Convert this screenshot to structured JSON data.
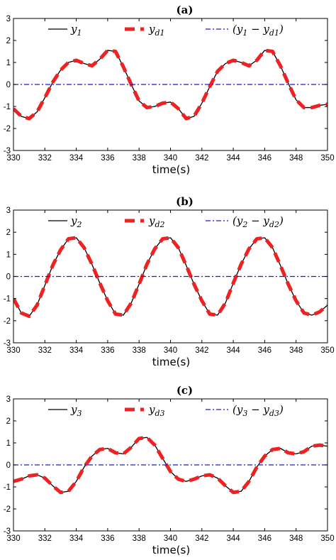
{
  "chart_data": [
    {
      "type": "line",
      "title": "(a)",
      "xlabel": "time(s)",
      "ylabel": "",
      "xlim": [
        330,
        350
      ],
      "ylim": [
        -3,
        3
      ],
      "xticks": [
        "330",
        "332",
        "334",
        "336",
        "338",
        "340",
        "342",
        "344",
        "346",
        "348",
        "350"
      ],
      "yticks": [
        "-3",
        "-2",
        "-1",
        "0",
        "1",
        "2",
        "3"
      ],
      "legend": [
        "y1",
        "yd1",
        "(y1 − yd1)"
      ],
      "legend_position": "top",
      "series": [
        {
          "name": "y1",
          "color": "#000000",
          "style": "solid",
          "x": [
            330,
            330.5,
            331,
            331.5,
            332,
            332.5,
            333,
            333.5,
            334,
            334.5,
            335,
            335.5,
            336,
            336.5,
            337,
            337.5,
            338,
            338.5,
            339,
            339.5,
            340,
            340.5,
            341,
            341.5,
            342,
            342.5,
            343,
            343.5,
            344,
            344.5,
            345,
            345.5,
            346,
            346.5,
            347,
            347.5,
            348,
            348.5,
            349,
            349.5,
            350
          ],
          "y": [
            -1.1,
            -1.45,
            -1.55,
            -1.25,
            -0.6,
            0.1,
            0.65,
            1.0,
            1.1,
            0.95,
            0.85,
            1.15,
            1.55,
            1.5,
            0.8,
            0.0,
            -0.75,
            -1.05,
            -1.0,
            -0.85,
            -0.8,
            -1.1,
            -1.55,
            -1.45,
            -0.85,
            -0.1,
            0.6,
            0.95,
            1.1,
            1.0,
            0.85,
            1.1,
            1.55,
            1.5,
            0.85,
            0.05,
            -0.7,
            -1.05,
            -1.05,
            -0.95,
            -0.9
          ]
        },
        {
          "name": "yd1",
          "color": "#ee2222",
          "style": "dashed",
          "x": [
            330,
            330.5,
            331,
            331.5,
            332,
            332.5,
            333,
            333.5,
            334,
            334.5,
            335,
            335.5,
            336,
            336.5,
            337,
            337.5,
            338,
            338.5,
            339,
            339.5,
            340,
            340.5,
            341,
            341.5,
            342,
            342.5,
            343,
            343.5,
            344,
            344.5,
            345,
            345.5,
            346,
            346.5,
            347,
            347.5,
            348,
            348.5,
            349,
            349.5,
            350
          ],
          "y": [
            -1.1,
            -1.45,
            -1.55,
            -1.25,
            -0.6,
            0.1,
            0.65,
            1.0,
            1.1,
            0.95,
            0.85,
            1.15,
            1.55,
            1.5,
            0.8,
            0.0,
            -0.75,
            -1.05,
            -1.0,
            -0.85,
            -0.8,
            -1.1,
            -1.55,
            -1.45,
            -0.85,
            -0.1,
            0.6,
            0.95,
            1.1,
            1.0,
            0.85,
            1.1,
            1.55,
            1.5,
            0.85,
            0.05,
            -0.7,
            -1.05,
            -1.05,
            -0.95,
            -0.9
          ]
        },
        {
          "name": "(y1 − yd1)",
          "color": "#1a1acc",
          "style": "dashdot",
          "x": [
            330,
            350
          ],
          "y": [
            0,
            0
          ]
        }
      ]
    },
    {
      "type": "line",
      "title": "(b)",
      "xlabel": "time(s)",
      "ylabel": "",
      "xlim": [
        330,
        350
      ],
      "ylim": [
        -3,
        3
      ],
      "xticks": [
        "330",
        "332",
        "334",
        "336",
        "338",
        "340",
        "342",
        "344",
        "346",
        "348",
        "350"
      ],
      "yticks": [
        "-3",
        "-2",
        "-1",
        "0",
        "1",
        "2",
        "3"
      ],
      "legend": [
        "y2",
        "yd2",
        "(y2 − yd2)"
      ],
      "legend_position": "top",
      "series": [
        {
          "name": "y2",
          "color": "#000000",
          "style": "solid",
          "x": [
            330,
            330.5,
            331,
            331.5,
            332,
            332.5,
            333,
            333.5,
            334,
            334.5,
            335,
            335.5,
            336,
            336.5,
            337,
            337.5,
            338,
            338.5,
            339,
            339.5,
            340,
            340.5,
            341,
            341.5,
            342,
            342.5,
            343,
            343.5,
            344,
            344.5,
            345,
            345.5,
            346,
            346.5,
            347,
            347.5,
            348,
            348.5,
            349,
            349.5,
            350
          ],
          "y": [
            -1.0,
            -1.65,
            -1.8,
            -1.3,
            -0.4,
            0.5,
            1.2,
            1.7,
            1.75,
            1.3,
            0.55,
            -0.3,
            -1.1,
            -1.7,
            -1.75,
            -1.2,
            -0.35,
            0.55,
            1.25,
            1.7,
            1.75,
            1.3,
            0.5,
            -0.35,
            -1.1,
            -1.7,
            -1.75,
            -1.2,
            -0.3,
            0.55,
            1.25,
            1.7,
            1.75,
            1.3,
            0.5,
            -0.35,
            -1.1,
            -1.65,
            -1.75,
            -1.6,
            -1.3
          ]
        },
        {
          "name": "yd2",
          "color": "#ee2222",
          "style": "dashed",
          "x": [
            330,
            330.5,
            331,
            331.5,
            332,
            332.5,
            333,
            333.5,
            334,
            334.5,
            335,
            335.5,
            336,
            336.5,
            337,
            337.5,
            338,
            338.5,
            339,
            339.5,
            340,
            340.5,
            341,
            341.5,
            342,
            342.5,
            343,
            343.5,
            344,
            344.5,
            345,
            345.5,
            346,
            346.5,
            347,
            347.5,
            348,
            348.5,
            349,
            349.5,
            350
          ],
          "y": [
            -1.0,
            -1.65,
            -1.8,
            -1.3,
            -0.4,
            0.5,
            1.2,
            1.7,
            1.75,
            1.3,
            0.55,
            -0.3,
            -1.1,
            -1.7,
            -1.75,
            -1.2,
            -0.35,
            0.55,
            1.25,
            1.7,
            1.75,
            1.3,
            0.5,
            -0.35,
            -1.1,
            -1.7,
            -1.75,
            -1.2,
            -0.3,
            0.55,
            1.25,
            1.7,
            1.75,
            1.3,
            0.5,
            -0.35,
            -1.1,
            -1.65,
            -1.75,
            -1.6,
            -1.3
          ]
        },
        {
          "name": "(y2 − yd2)",
          "color": "#1a1acc",
          "style": "dashdot",
          "x": [
            330,
            350
          ],
          "y": [
            0,
            0
          ]
        }
      ]
    },
    {
      "type": "line",
      "title": "(c)",
      "xlabel": "time(s)",
      "ylabel": "",
      "xlim": [
        330,
        350
      ],
      "ylim": [
        -3,
        3
      ],
      "xticks": [
        "330",
        "332",
        "334",
        "336",
        "338",
        "340",
        "342",
        "344",
        "346",
        "348",
        "350"
      ],
      "yticks": [
        "-3",
        "-2",
        "-1",
        "0",
        "1",
        "2",
        "3"
      ],
      "legend": [
        "y3",
        "yd3",
        "(y3 − yd3)"
      ],
      "legend_position": "top",
      "series": [
        {
          "name": "y3",
          "color": "#000000",
          "style": "solid",
          "x": [
            330,
            330.5,
            331,
            331.5,
            332,
            332.5,
            333,
            333.5,
            334,
            334.5,
            335,
            335.5,
            336,
            336.5,
            337,
            337.5,
            338,
            338.5,
            339,
            339.5,
            340,
            340.5,
            341,
            341.5,
            342,
            342.5,
            343,
            343.5,
            344,
            344.5,
            345,
            345.5,
            346,
            346.5,
            347,
            347.5,
            348,
            348.5,
            349,
            349.5,
            350
          ],
          "y": [
            -0.75,
            -0.65,
            -0.5,
            -0.45,
            -0.6,
            -0.95,
            -1.25,
            -1.2,
            -0.75,
            -0.1,
            0.4,
            0.7,
            0.75,
            0.55,
            0.5,
            0.8,
            1.2,
            1.25,
            0.9,
            0.3,
            -0.3,
            -0.65,
            -0.75,
            -0.65,
            -0.5,
            -0.45,
            -0.6,
            -0.95,
            -1.25,
            -1.2,
            -0.75,
            -0.1,
            0.4,
            0.7,
            0.75,
            0.55,
            0.5,
            0.6,
            0.85,
            0.9,
            0.85
          ]
        },
        {
          "name": "yd3",
          "color": "#ee2222",
          "style": "dashed",
          "x": [
            330,
            330.5,
            331,
            331.5,
            332,
            332.5,
            333,
            333.5,
            334,
            334.5,
            335,
            335.5,
            336,
            336.5,
            337,
            337.5,
            338,
            338.5,
            339,
            339.5,
            340,
            340.5,
            341,
            341.5,
            342,
            342.5,
            343,
            343.5,
            344,
            344.5,
            345,
            345.5,
            346,
            346.5,
            347,
            347.5,
            348,
            348.5,
            349,
            349.5,
            350
          ],
          "y": [
            -0.75,
            -0.65,
            -0.5,
            -0.45,
            -0.6,
            -0.95,
            -1.25,
            -1.2,
            -0.75,
            -0.1,
            0.4,
            0.7,
            0.75,
            0.55,
            0.5,
            0.8,
            1.2,
            1.25,
            0.9,
            0.3,
            -0.3,
            -0.65,
            -0.75,
            -0.65,
            -0.5,
            -0.45,
            -0.6,
            -0.95,
            -1.25,
            -1.2,
            -0.75,
            -0.1,
            0.4,
            0.7,
            0.75,
            0.55,
            0.5,
            0.6,
            0.85,
            0.9,
            0.85
          ]
        },
        {
          "name": "(y3 − yd3)",
          "color": "#1a1acc",
          "style": "dashdot",
          "x": [
            330,
            350
          ],
          "y": [
            0,
            0
          ]
        }
      ]
    }
  ]
}
